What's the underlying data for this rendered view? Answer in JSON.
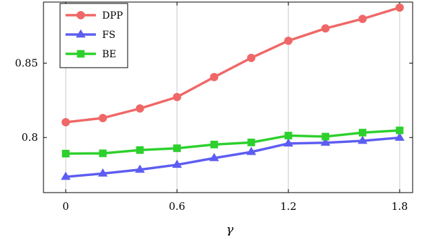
{
  "chart_data": {
    "type": "line",
    "xlabel": "γ",
    "ylabel": "",
    "x": [
      0,
      0.2,
      0.4,
      0.6,
      0.8,
      1.0,
      1.2,
      1.4,
      1.6,
      1.8
    ],
    "xlim": [
      -0.12,
      1.87
    ],
    "ylim": [
      0.763,
      0.891
    ],
    "xticks": [
      0,
      0.6,
      1.2,
      1.8
    ],
    "xtick_labels": [
      "0",
      "0.6",
      "1.2",
      "1.8"
    ],
    "yticks": [
      0.8,
      0.85
    ],
    "ytick_labels": [
      "0.8",
      "0.85"
    ],
    "grid": "vertical",
    "legend_position": "top-left",
    "series": [
      {
        "name": "DPP",
        "color": "#f06767",
        "marker": "circle",
        "values": [
          0.8103,
          0.8131,
          0.8195,
          0.8272,
          0.8406,
          0.8535,
          0.865,
          0.8733,
          0.8797,
          0.8873
        ]
      },
      {
        "name": "FS",
        "color": "#5d5df2",
        "marker": "triangle",
        "values": [
          0.7736,
          0.7758,
          0.7784,
          0.7817,
          0.7862,
          0.7903,
          0.796,
          0.7965,
          0.7978,
          0.7999
        ]
      },
      {
        "name": "BE",
        "color": "#2dd02d",
        "marker": "square",
        "values": [
          0.7892,
          0.7894,
          0.7916,
          0.7928,
          0.7953,
          0.7967,
          0.8013,
          0.8006,
          0.8033,
          0.8048
        ]
      }
    ]
  }
}
